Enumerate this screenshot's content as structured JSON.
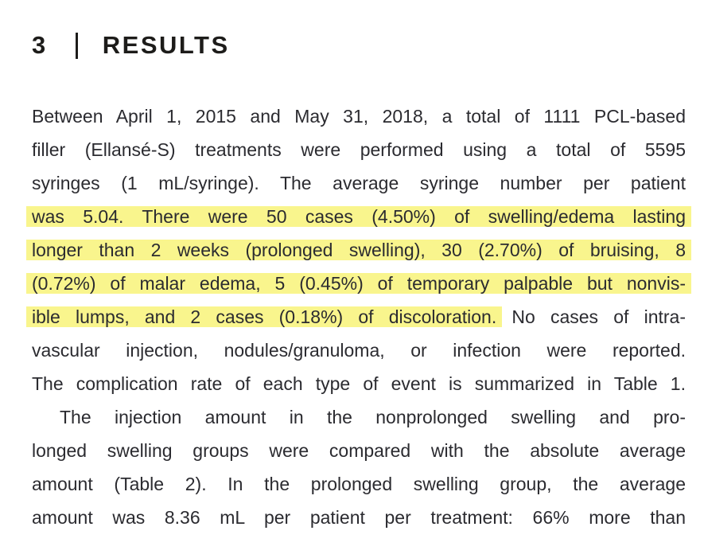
{
  "heading": {
    "number": "3",
    "divider": "|",
    "title": "RESULTS"
  },
  "colors": {
    "highlight": "#f9f58d",
    "body_text": "#2b2b30",
    "heading_text": "#1d1c1a"
  },
  "body": {
    "lines": [
      {
        "indent": false,
        "segments": [
          {
            "text": "Between April 1, 2015 and May 31, 2018, a total of 1111 PCL-based",
            "highlight": false
          }
        ]
      },
      {
        "indent": false,
        "segments": [
          {
            "text": "filler (Ellansé-S) treatments were performed using a total of 5595",
            "highlight": false
          }
        ]
      },
      {
        "indent": false,
        "segments": [
          {
            "text": "syringes (1 mL/syringe). The average syringe number per patient",
            "highlight": false
          }
        ]
      },
      {
        "indent": false,
        "segments": [
          {
            "text": "was 5.04. There were 50 cases (4.50%) of swelling/edema lasting",
            "highlight": true
          }
        ]
      },
      {
        "indent": false,
        "segments": [
          {
            "text": "longer than 2 weeks (prolonged swelling), 30 (2.70%) of bruising, 8",
            "highlight": true
          }
        ]
      },
      {
        "indent": false,
        "segments": [
          {
            "text": "(0.72%) of malar edema, 5 (0.45%) of temporary palpable but nonvis-",
            "highlight": true
          }
        ]
      },
      {
        "indent": false,
        "segments": [
          {
            "text": "ible lumps, and 2 cases (0.18%) of discoloration.",
            "highlight": true
          },
          {
            "text": " No cases of intra-",
            "highlight": false
          }
        ]
      },
      {
        "indent": false,
        "segments": [
          {
            "text": "vascular injection, nodules/granuloma, or infection were reported.",
            "highlight": false
          }
        ]
      },
      {
        "indent": false,
        "segments": [
          {
            "text": "The complication rate of each type of event is summarized in Table 1.",
            "highlight": false
          }
        ]
      },
      {
        "indent": true,
        "segments": [
          {
            "text": "The injection amount in the nonprolonged swelling and pro-",
            "highlight": false
          }
        ]
      },
      {
        "indent": false,
        "segments": [
          {
            "text": "longed swelling groups were compared with the absolute average",
            "highlight": false
          }
        ]
      },
      {
        "indent": false,
        "segments": [
          {
            "text": "amount (Table 2). In the prolonged swelling group, the average",
            "highlight": false
          }
        ]
      },
      {
        "indent": false,
        "segments": [
          {
            "text": "amount was 8.36 mL per patient per treatment: 66% more than",
            "highlight": false
          }
        ]
      }
    ]
  }
}
